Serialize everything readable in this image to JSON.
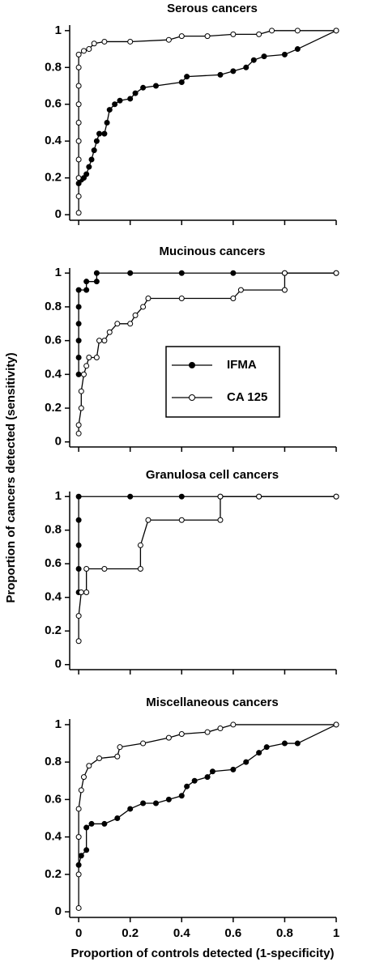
{
  "chart_data": [
    {
      "type": "line",
      "title": "Serous cancers",
      "xlim": [
        -0.035,
        1
      ],
      "ylim": [
        -0.03,
        1.03
      ],
      "xticks": [
        0,
        0.2,
        0.4,
        0.6,
        0.8,
        1
      ],
      "xtick_labels": false,
      "yticks": [
        0,
        0.2,
        0.4,
        0.6,
        0.8,
        1
      ],
      "series": [
        {
          "color": "#000000",
          "marker": "filled",
          "x": [
            0,
            0.01,
            0.02,
            0.03,
            0.04,
            0.05,
            0.06,
            0.07,
            0.08,
            0.1,
            0.11,
            0.12,
            0.14,
            0.16,
            0.2,
            0.22,
            0.25,
            0.3,
            0.4,
            0.42,
            0.55,
            0.6,
            0.65,
            0.68,
            0.72,
            0.8,
            0.85,
            1
          ],
          "values": [
            0.17,
            0.19,
            0.2,
            0.22,
            0.26,
            0.3,
            0.35,
            0.4,
            0.44,
            0.44,
            0.5,
            0.57,
            0.6,
            0.62,
            0.63,
            0.66,
            0.69,
            0.7,
            0.72,
            0.75,
            0.76,
            0.78,
            0.8,
            0.84,
            0.86,
            0.87,
            0.9,
            1
          ]
        },
        {
          "color": "#000000",
          "marker": "open",
          "x": [
            0,
            0,
            0,
            0,
            0,
            0,
            0,
            0,
            0,
            0,
            0.02,
            0.04,
            0.06,
            0.1,
            0.2,
            0.35,
            0.4,
            0.5,
            0.6,
            0.7,
            0.75,
            0.85,
            1
          ],
          "values": [
            0.01,
            0.1,
            0.2,
            0.3,
            0.4,
            0.5,
            0.6,
            0.7,
            0.8,
            0.87,
            0.89,
            0.9,
            0.93,
            0.94,
            0.94,
            0.95,
            0.97,
            0.97,
            0.98,
            0.98,
            1,
            1,
            1
          ]
        }
      ]
    },
    {
      "type": "line",
      "title": "Mucinous cancers",
      "xlim": [
        -0.035,
        1
      ],
      "ylim": [
        -0.03,
        1.03
      ],
      "xticks": [
        0,
        0.2,
        0.4,
        0.6,
        0.8,
        1
      ],
      "xtick_labels": false,
      "yticks": [
        0,
        0.2,
        0.4,
        0.6,
        0.8,
        1
      ],
      "ylabel": "Proportion of cancers detected (sensitivity)",
      "legend": true,
      "series": [
        {
          "name": "IFMA",
          "color": "#000000",
          "marker": "filled",
          "x": [
            0,
            0,
            0,
            0,
            0,
            0,
            0.03,
            0.03,
            0.07,
            0.07,
            0.2,
            0.4,
            0.6,
            0.8,
            1
          ],
          "values": [
            0.4,
            0.5,
            0.6,
            0.7,
            0.8,
            0.9,
            0.9,
            0.95,
            0.95,
            1,
            1,
            1,
            1,
            1,
            1
          ]
        },
        {
          "name": "CA 125",
          "color": "#000000",
          "marker": "open",
          "x": [
            0,
            0,
            0.01,
            0.01,
            0.02,
            0.03,
            0.04,
            0.07,
            0.08,
            0.1,
            0.12,
            0.15,
            0.2,
            0.22,
            0.25,
            0.27,
            0.4,
            0.6,
            0.63,
            0.8,
            0.8,
            1
          ],
          "values": [
            0.05,
            0.1,
            0.2,
            0.3,
            0.4,
            0.45,
            0.5,
            0.5,
            0.6,
            0.6,
            0.65,
            0.7,
            0.7,
            0.75,
            0.8,
            0.85,
            0.85,
            0.85,
            0.9,
            0.9,
            1,
            1
          ]
        }
      ]
    },
    {
      "type": "line",
      "title": "Granulosa cell cancers",
      "xlim": [
        -0.035,
        1
      ],
      "ylim": [
        -0.03,
        1.03
      ],
      "xticks": [
        0,
        0.2,
        0.4,
        0.6,
        0.8,
        1
      ],
      "xtick_labels": false,
      "yticks": [
        0,
        0.2,
        0.4,
        0.6,
        0.8,
        1
      ],
      "series": [
        {
          "color": "#000000",
          "marker": "filled",
          "x": [
            0,
            0,
            0,
            0,
            0,
            0.2,
            0.4,
            0.55,
            0.7,
            1
          ],
          "values": [
            0.43,
            0.57,
            0.71,
            0.86,
            1,
            1,
            1,
            1,
            1,
            1
          ]
        },
        {
          "color": "#000000",
          "marker": "open",
          "x": [
            0,
            0,
            0.01,
            0.03,
            0.03,
            0.1,
            0.24,
            0.24,
            0.27,
            0.4,
            0.55,
            0.55,
            0.7,
            1
          ],
          "values": [
            0.14,
            0.29,
            0.43,
            0.43,
            0.57,
            0.57,
            0.57,
            0.71,
            0.86,
            0.86,
            0.86,
            1,
            1,
            1
          ]
        }
      ]
    },
    {
      "type": "line",
      "title": "Miscellaneous cancers",
      "xlim": [
        -0.035,
        1
      ],
      "ylim": [
        -0.03,
        1.03
      ],
      "xticks": [
        0,
        0.2,
        0.4,
        0.6,
        0.8,
        1
      ],
      "xtick_labels": true,
      "yticks": [
        0,
        0.2,
        0.4,
        0.6,
        0.8,
        1
      ],
      "xlabel": "Proportion of controls detected (1-specificity)",
      "series": [
        {
          "color": "#000000",
          "marker": "filled",
          "x": [
            0,
            0.01,
            0.03,
            0.03,
            0.05,
            0.1,
            0.15,
            0.2,
            0.25,
            0.3,
            0.35,
            0.4,
            0.42,
            0.45,
            0.5,
            0.52,
            0.6,
            0.65,
            0.7,
            0.73,
            0.8,
            0.85,
            1
          ],
          "values": [
            0.25,
            0.3,
            0.33,
            0.45,
            0.47,
            0.47,
            0.5,
            0.55,
            0.58,
            0.58,
            0.6,
            0.62,
            0.67,
            0.7,
            0.72,
            0.75,
            0.76,
            0.8,
            0.85,
            0.88,
            0.9,
            0.9,
            1
          ]
        },
        {
          "color": "#000000",
          "marker": "open",
          "x": [
            0,
            0,
            0,
            0,
            0.01,
            0.02,
            0.04,
            0.08,
            0.15,
            0.16,
            0.25,
            0.35,
            0.4,
            0.5,
            0.55,
            0.6,
            1
          ],
          "values": [
            0.02,
            0.2,
            0.4,
            0.55,
            0.65,
            0.72,
            0.78,
            0.82,
            0.83,
            0.88,
            0.9,
            0.93,
            0.95,
            0.96,
            0.98,
            1,
            1
          ]
        }
      ]
    }
  ]
}
